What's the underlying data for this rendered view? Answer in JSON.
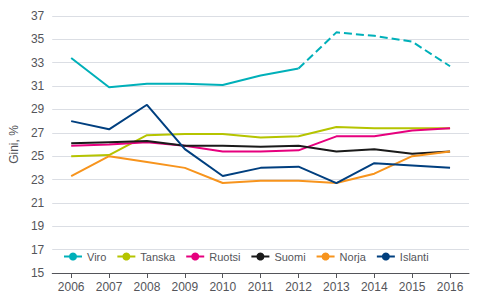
{
  "chart_data": {
    "type": "line",
    "y_label": "Gini, %",
    "series": [
      {
        "name": "Viro",
        "color": "#00b0b9",
        "line_style": "solid",
        "x": [
          2006,
          2007,
          2008,
          2009,
          2010,
          2011,
          2012
        ],
        "values": [
          33.4,
          30.9,
          31.2,
          31.2,
          31.1,
          31.9,
          32.5
        ]
      },
      {
        "name": "Viro",
        "color": "#00b0b9",
        "line_style": "dashed",
        "x": [
          2012,
          2013,
          2014,
          2015,
          2016
        ],
        "values": [
          32.5,
          35.6,
          35.3,
          34.8,
          32.7
        ]
      },
      {
        "name": "Tanska",
        "color": "#b5c400",
        "line_style": "solid",
        "x": [
          2006,
          2007,
          2008,
          2009,
          2010,
          2011,
          2012,
          2013,
          2014,
          2015,
          2016
        ],
        "values": [
          25.0,
          25.1,
          26.8,
          26.9,
          26.9,
          26.6,
          26.7,
          27.5,
          27.4,
          27.4,
          27.4
        ]
      },
      {
        "name": "Ruotsi",
        "color": "#e6007e",
        "line_style": "solid",
        "x": [
          2006,
          2007,
          2008,
          2009,
          2010,
          2011,
          2012,
          2013,
          2014,
          2015,
          2016
        ],
        "values": [
          25.9,
          26.0,
          26.2,
          25.9,
          25.4,
          25.4,
          25.5,
          26.7,
          26.7,
          27.2,
          27.4
        ]
      },
      {
        "name": "Suomi",
        "color": "#1a1a1a",
        "line_style": "solid",
        "x": [
          2006,
          2007,
          2008,
          2009,
          2010,
          2011,
          2012,
          2013,
          2014,
          2015,
          2016
        ],
        "values": [
          26.1,
          26.2,
          26.3,
          25.9,
          25.9,
          25.8,
          25.9,
          25.4,
          25.6,
          25.2,
          25.4
        ]
      },
      {
        "name": "Norja",
        "color": "#f7941d",
        "line_style": "solid",
        "x": [
          2006,
          2007,
          2008,
          2009,
          2010,
          2011,
          2012,
          2013,
          2014,
          2015,
          2016
        ],
        "values": [
          23.3,
          25.0,
          24.5,
          24.0,
          22.7,
          22.9,
          22.9,
          22.7,
          23.5,
          25.0,
          25.4
        ]
      },
      {
        "name": "Islanti",
        "color": "#003f7f",
        "line_style": "solid",
        "x": [
          2006,
          2007,
          2008,
          2009,
          2010,
          2011,
          2012,
          2013,
          2014,
          2015,
          2016
        ],
        "values": [
          28.0,
          27.3,
          29.4,
          25.6,
          23.3,
          24.0,
          24.1,
          22.7,
          24.4,
          24.2,
          24.0
        ]
      }
    ],
    "xlim": [
      2005.5,
      2016.5
    ],
    "xticks": [
      2006,
      2007,
      2008,
      2009,
      2010,
      2011,
      2012,
      2013,
      2014,
      2015,
      2016
    ],
    "ylim": [
      15,
      37
    ],
    "yticks": [
      15,
      17,
      19,
      21,
      23,
      25,
      27,
      29,
      31,
      33,
      35,
      37
    ],
    "grid": true,
    "legend": "lower left"
  }
}
